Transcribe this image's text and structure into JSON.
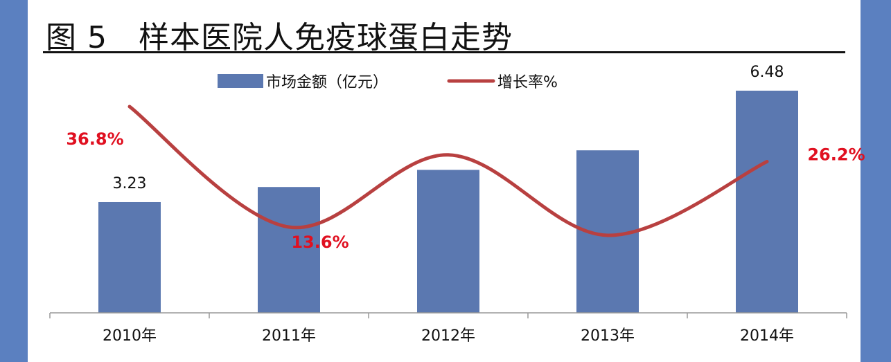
{
  "page": {
    "title": "图 5　样本医院人免疫球蛋白走势",
    "accent_color": "#5b80c0"
  },
  "chart_data": {
    "type": "bar",
    "categories": [
      "2010年",
      "2011年",
      "2012年",
      "2013年",
      "2014年"
    ],
    "series": [
      {
        "name": "市场金额（亿元）",
        "type": "bar",
        "color": "#5b78b0",
        "values": [
          3.23,
          3.67,
          4.17,
          4.74,
          6.48
        ],
        "labels": [
          "3.23",
          "",
          "",
          "",
          "6.48"
        ]
      },
      {
        "name": "增长率%",
        "type": "line",
        "color": "#b84040",
        "values": [
          36.8,
          13.6,
          27.5,
          12.0,
          26.2
        ],
        "labels": [
          "36.8%",
          "13.6%",
          "",
          "",
          "26.2%"
        ]
      }
    ],
    "bar_ylim": [
      0,
      6.48
    ],
    "line_ylim": [
      10,
      40
    ],
    "grid": false,
    "legend_position": "top"
  }
}
